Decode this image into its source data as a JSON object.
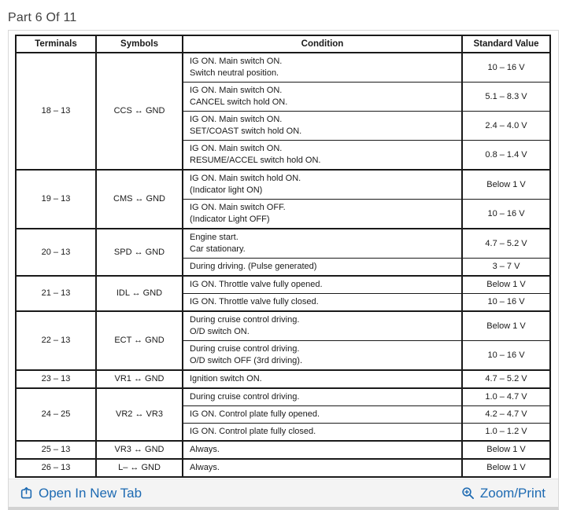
{
  "page": {
    "title": "Part 6 Of 11"
  },
  "table": {
    "headers": [
      "Terminals",
      "Symbols",
      "Condition",
      "Standard Value"
    ],
    "groups": [
      {
        "terminals": "18 – 13",
        "symbol": "CCS ↔ GND",
        "rows": [
          {
            "condition": [
              "IG ON. Main switch ON.",
              "Switch neutral position."
            ],
            "value": "10 – 16 V"
          },
          {
            "condition": [
              "IG ON. Main switch ON.",
              "CANCEL switch hold ON."
            ],
            "value": "5.1 – 8.3 V"
          },
          {
            "condition": [
              "IG ON. Main switch ON.",
              "SET/COAST switch hold ON."
            ],
            "value": "2.4 – 4.0 V"
          },
          {
            "condition": [
              "IG ON. Main switch ON.",
              "RESUME/ACCEL switch hold ON."
            ],
            "value": "0.8 – 1.4 V"
          }
        ]
      },
      {
        "terminals": "19 – 13",
        "symbol": "CMS ↔ GND",
        "rows": [
          {
            "condition": [
              "IG ON. Main switch hold ON.",
              "(Indicator light ON)"
            ],
            "value": "Below 1 V"
          },
          {
            "condition": [
              "IG ON. Main switch OFF.",
              "(Indicator Light OFF)"
            ],
            "value": "10 – 16 V"
          }
        ]
      },
      {
        "terminals": "20 – 13",
        "symbol": "SPD ↔ GND",
        "rows": [
          {
            "condition": [
              "Engine start.",
              "Car stationary."
            ],
            "value": "4.7 – 5.2 V"
          },
          {
            "condition": [
              "During driving. (Pulse generated)"
            ],
            "value": "3 – 7 V"
          }
        ]
      },
      {
        "terminals": "21 – 13",
        "symbol": "IDL ↔ GND",
        "rows": [
          {
            "condition": [
              "IG ON. Throttle valve fully opened."
            ],
            "value": "Below 1 V"
          },
          {
            "condition": [
              "IG ON. Throttle valve fully closed."
            ],
            "value": "10 – 16 V"
          }
        ]
      },
      {
        "terminals": "22 – 13",
        "symbol": "ECT ↔ GND",
        "rows": [
          {
            "condition": [
              "During cruise control driving.",
              "O/D switch ON."
            ],
            "value": "Below 1 V"
          },
          {
            "condition": [
              "During cruise control driving.",
              "O/D switch OFF (3rd driving)."
            ],
            "value": "10 – 16 V"
          }
        ]
      },
      {
        "terminals": "23 – 13",
        "symbol": "VR1 ↔ GND",
        "rows": [
          {
            "condition": [
              "Ignition switch ON."
            ],
            "value": "4.7 – 5.2 V"
          }
        ]
      },
      {
        "terminals": "24 – 25",
        "symbol": "VR2 ↔ VR3",
        "rows": [
          {
            "condition": [
              "During cruise control driving."
            ],
            "value": "1.0 – 4.7 V"
          },
          {
            "condition": [
              "IG ON. Control plate fully opened."
            ],
            "value": "4.2 – 4.7 V"
          },
          {
            "condition": [
              "IG ON. Control plate fully closed."
            ],
            "value": "1.0 – 1.2 V"
          }
        ]
      },
      {
        "terminals": "25 – 13",
        "symbol": "VR3 ↔ GND",
        "rows": [
          {
            "condition": [
              "Always."
            ],
            "value": "Below 1 V"
          }
        ]
      },
      {
        "terminals": "26 – 13",
        "symbol": "L– ↔ GND",
        "rows": [
          {
            "condition": [
              "Always."
            ],
            "value": "Below 1 V"
          }
        ]
      }
    ]
  },
  "footer": {
    "open_in_new_tab_label": "Open In New Tab",
    "zoom_print_label": "Zoom/Print",
    "icons": [
      "open-in-new-tab-icon",
      "zoom-magnifier-icon"
    ]
  },
  "colors": {
    "link_blue": "#1d6ab2",
    "table_border": "#1a1a1a",
    "footer_background": "#f4f4f4",
    "widget_border": "#d8d8d8"
  }
}
